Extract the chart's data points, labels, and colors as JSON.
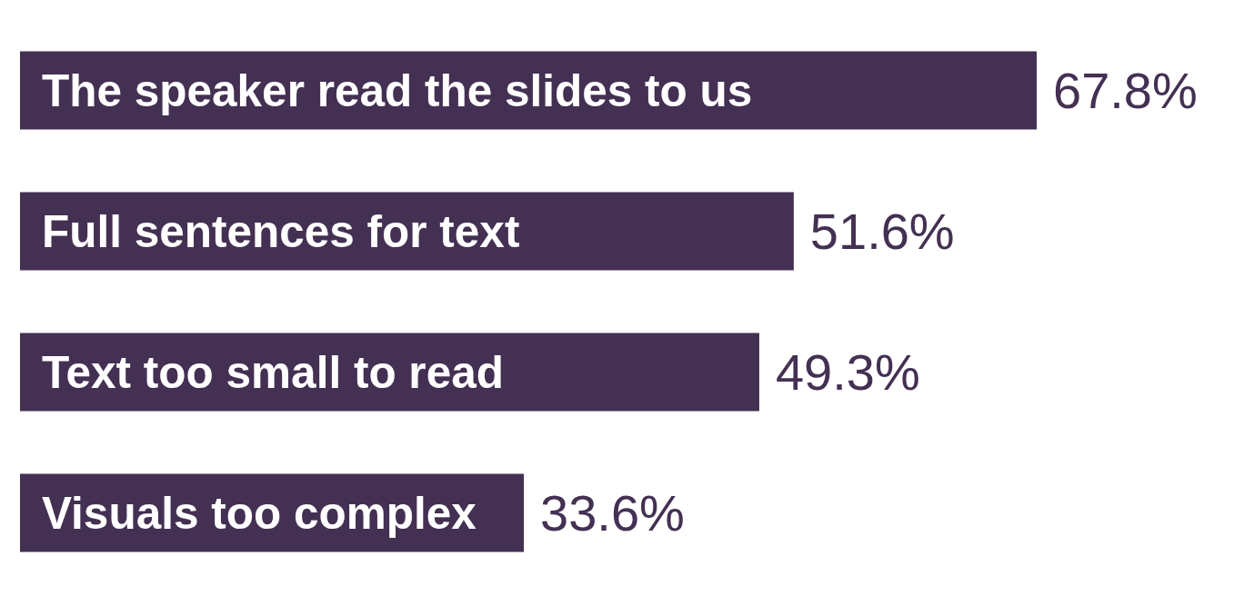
{
  "chart_data": {
    "type": "bar",
    "orientation": "horizontal",
    "categories": [
      "The speaker read the slides to us",
      "Full sentences for text",
      "Text too small to read",
      "Visuals too complex"
    ],
    "values": [
      67.8,
      51.6,
      49.3,
      33.6
    ],
    "value_labels": [
      "67.8%",
      "51.6%",
      "49.3%",
      "33.6%"
    ],
    "color": "#433052"
  }
}
